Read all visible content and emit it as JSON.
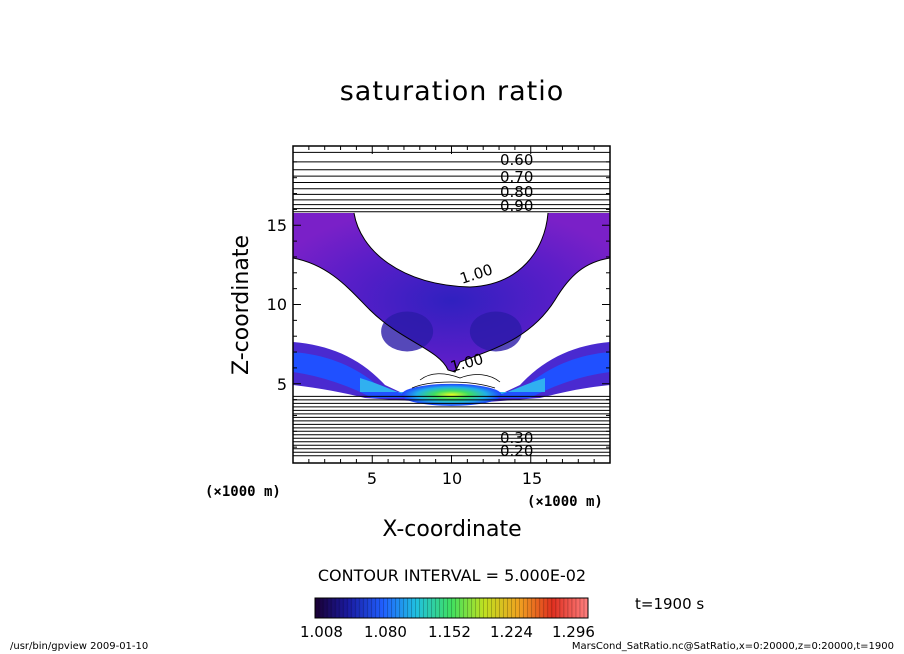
{
  "chart_data": {
    "type": "heatmap",
    "title": "saturation ratio",
    "xlabel": "X-coordinate",
    "ylabel": "Z-coordinate",
    "x_unit_label": "(×1000 m)",
    "y_unit_label": "(×1000 m)",
    "xlim": [
      0,
      20
    ],
    "ylim": [
      0,
      20
    ],
    "x_ticks": [
      5,
      10,
      15
    ],
    "y_ticks": [
      5,
      10,
      15
    ],
    "contour_interval_text": "CONTOUR INTERVAL = 5.000E-02",
    "contour_labels_upper": [
      "0.60",
      "0.70",
      "0.80",
      "0.90"
    ],
    "contour_labels_lower": [
      "0.30",
      "0.20"
    ],
    "contour_labels_inner": [
      "1.00",
      "1.00"
    ],
    "colorbar": {
      "min": 1.008,
      "max": 1.332,
      "tick_labels": [
        "1.008",
        "1.080",
        "1.152",
        "1.224",
        "1.296"
      ]
    },
    "time_label": "t=1900 s"
  },
  "footer": {
    "left": "/usr/bin/gpview   2009-01-10",
    "right": "MarsCond_SatRatio.nc@SatRatio,x=0:20000,z=0:20000,t=1900"
  }
}
